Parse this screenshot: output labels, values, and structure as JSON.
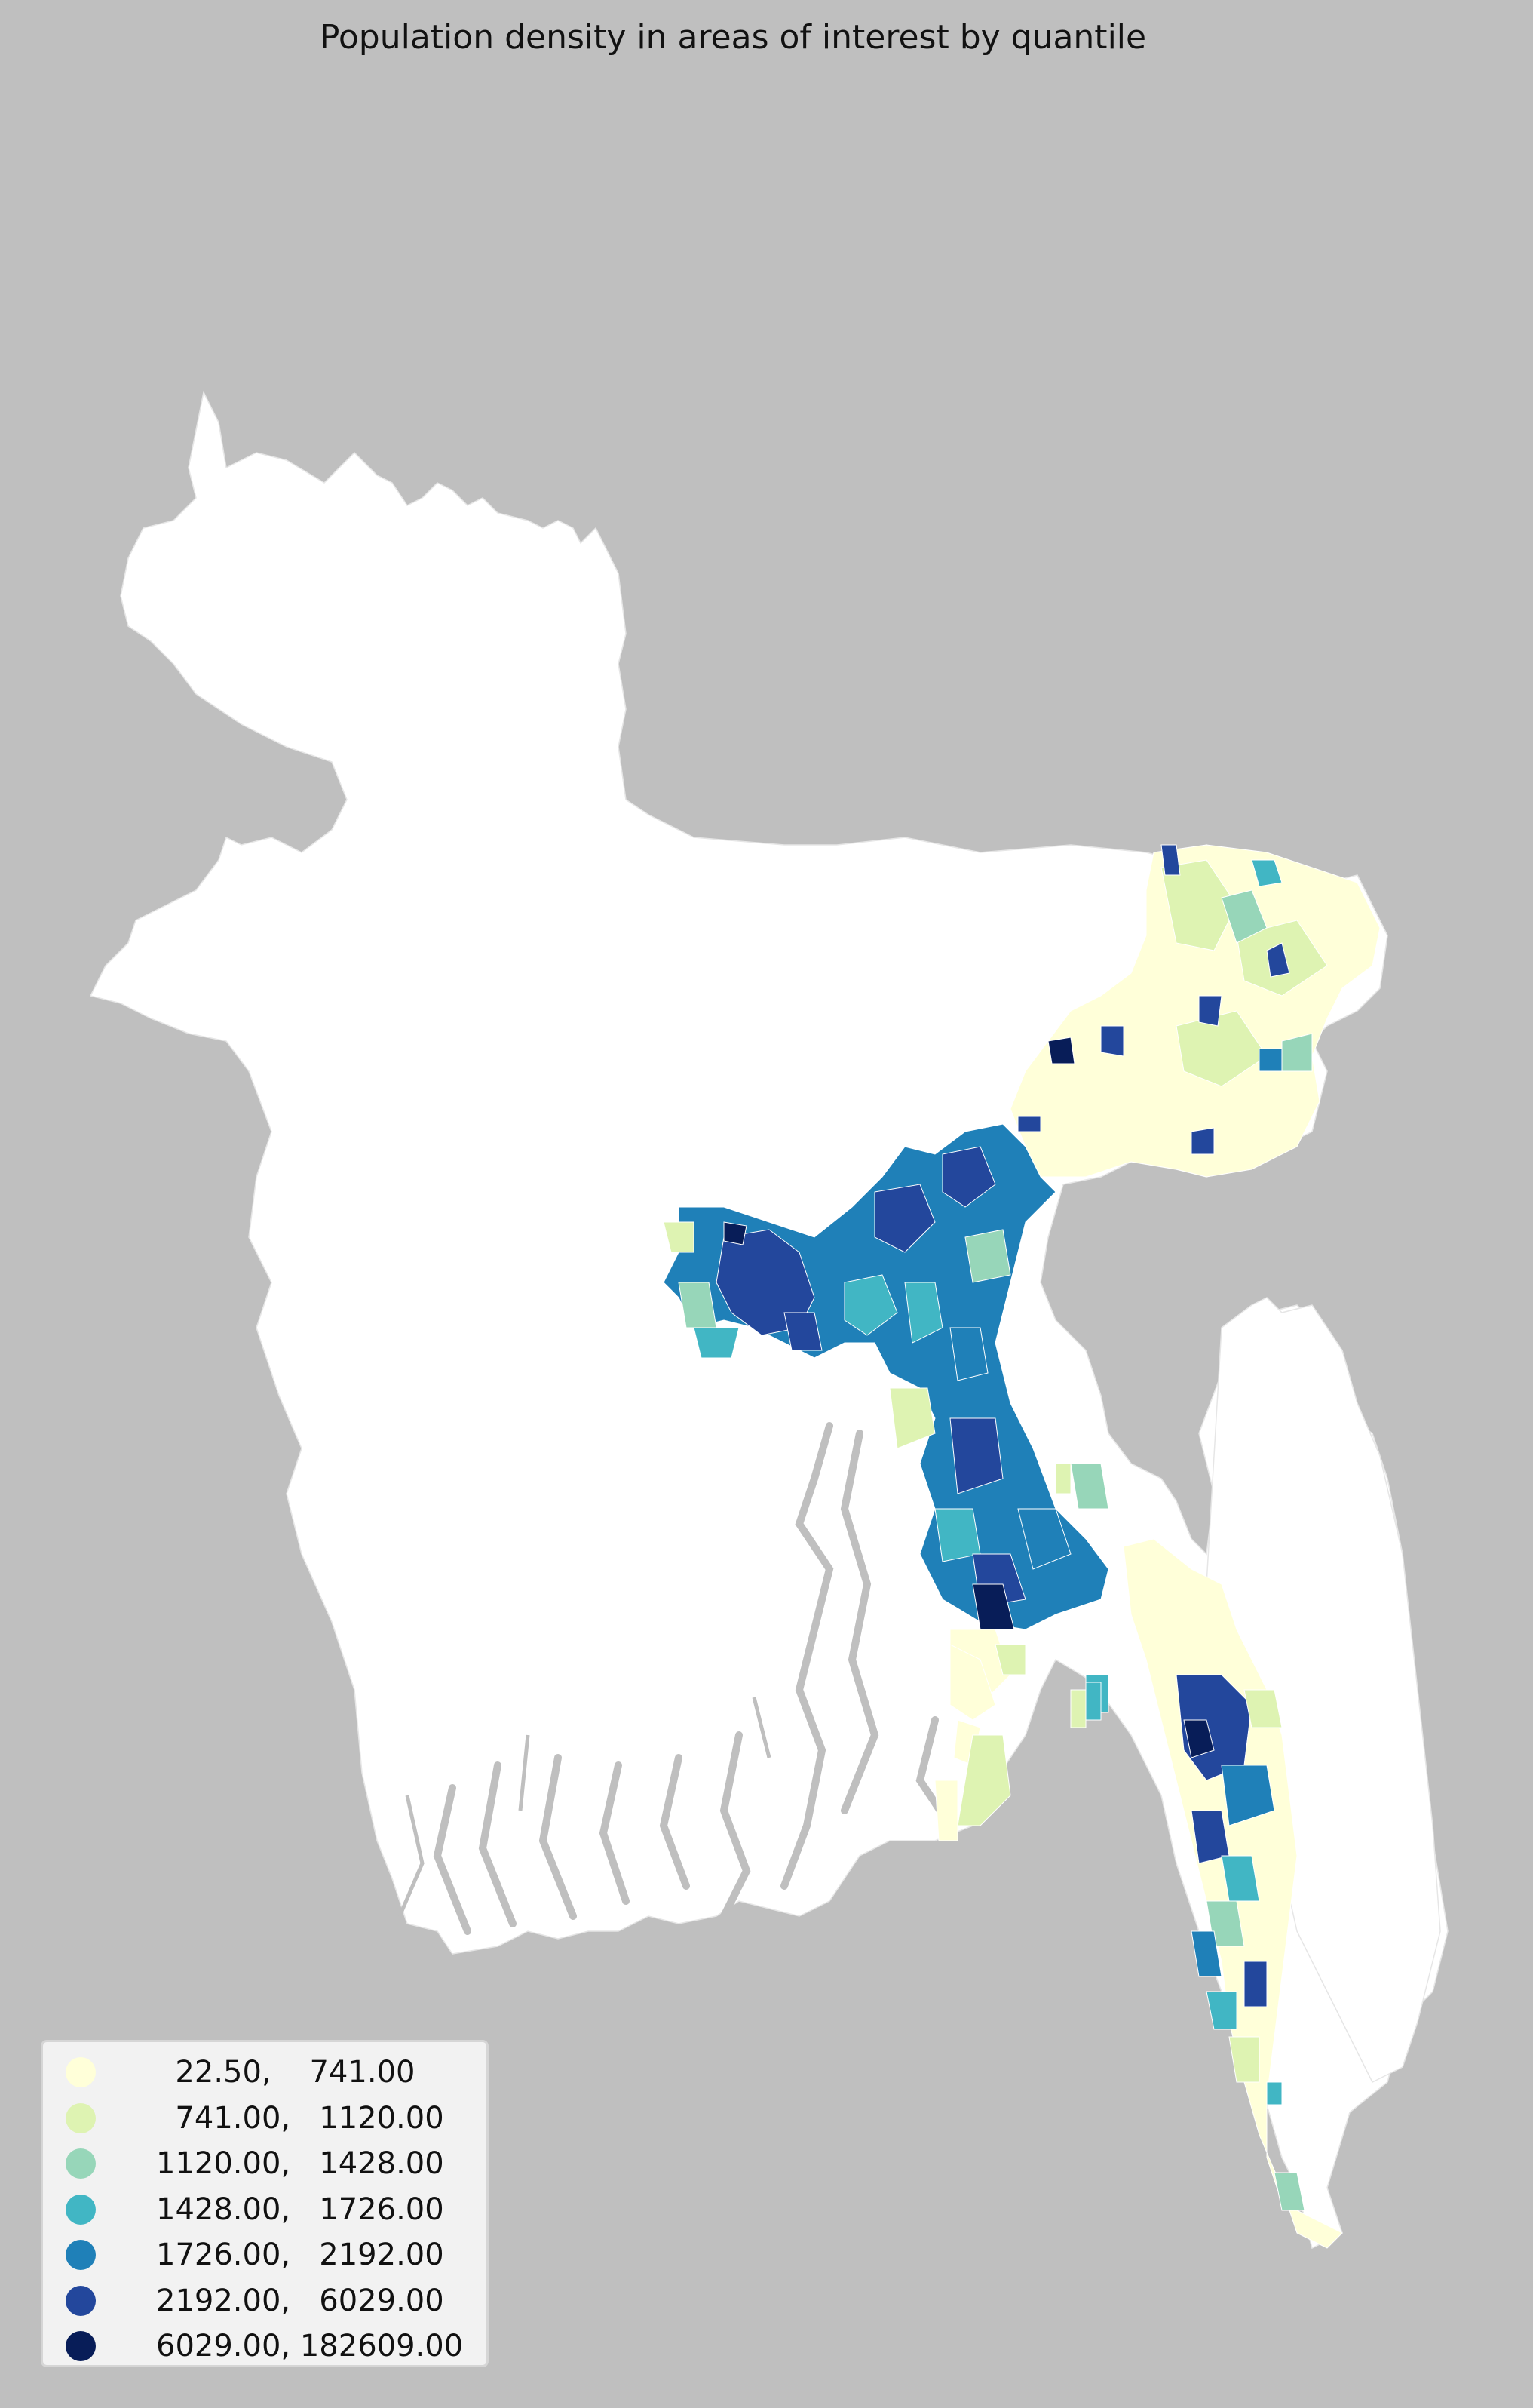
{
  "title": "Population density in areas of interest by quantile",
  "background_color": "#bfbfbf",
  "base_fill": "#ffffff",
  "legend": {
    "items": [
      {
        "label": "  22.50,    741.00",
        "color": "#ffffd9"
      },
      {
        "label": "  741.00,   1120.00",
        "color": "#def3b2"
      },
      {
        "label": "1120.00,   1428.00",
        "color": "#97d6b9"
      },
      {
        "label": "1428.00,   1726.00",
        "color": "#41b6c4"
      },
      {
        "label": "1726.00,   2192.00",
        "color": "#1f80b8"
      },
      {
        "label": "2192.00,   6029.00",
        "color": "#23479c"
      },
      {
        "label": "6029.00, 182609.00",
        "color": "#081d58"
      }
    ]
  }
}
